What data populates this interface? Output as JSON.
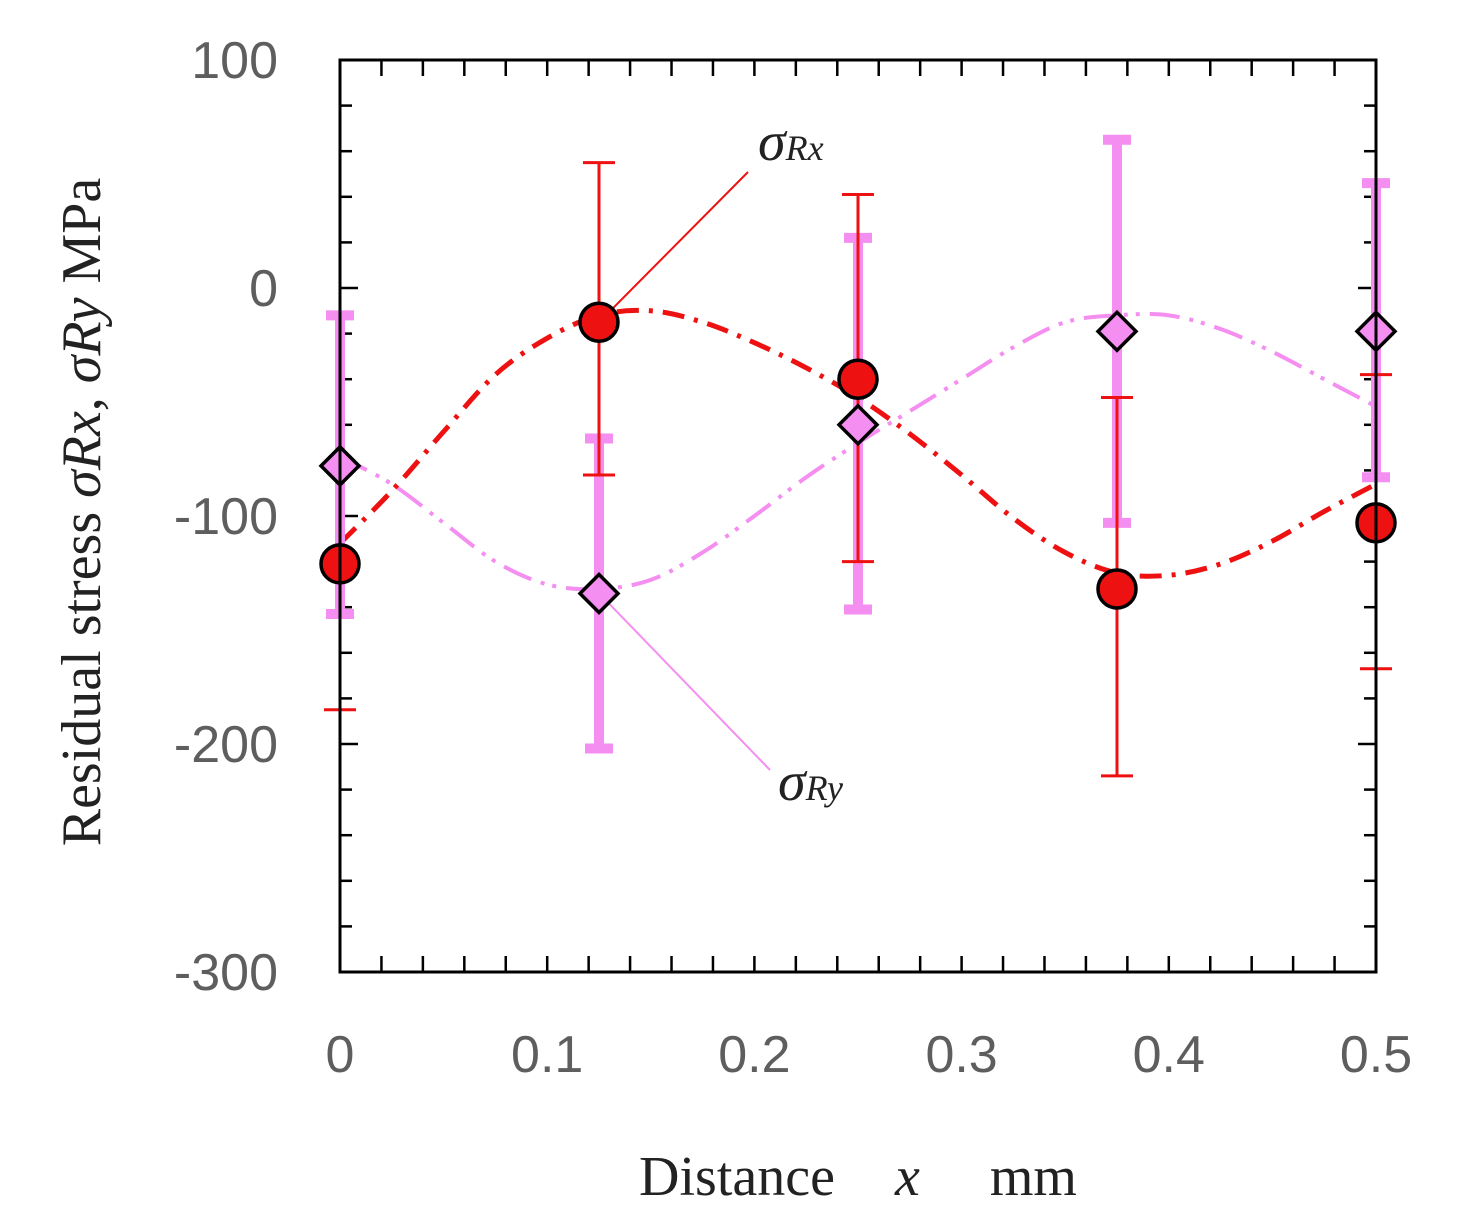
{
  "chart_data": {
    "type": "scatter",
    "title": "",
    "xlabel": "Distance",
    "xlabel_var": "x",
    "xlabel_unit": "mm",
    "ylabel": "Residual stress",
    "ylabel_symbol_x": "σRx",
    "ylabel_symbol_y": "σRy",
    "ylabel_unit": "MPa",
    "xlim": [
      0,
      0.5
    ],
    "ylim": [
      -300,
      100
    ],
    "x_ticks": [
      0,
      0.1,
      0.2,
      0.3,
      0.4,
      0.5
    ],
    "x_tick_labels": [
      "0",
      "0.1",
      "0.2",
      "0.3",
      "0.4",
      "0.5"
    ],
    "y_ticks": [
      100,
      0,
      -100,
      -200,
      -300
    ],
    "y_tick_labels": [
      "100",
      "0",
      "-100",
      "-200",
      "-300"
    ],
    "grid": false,
    "series": [
      {
        "name": "σRx",
        "label_main": "σ",
        "label_sub": "Rx",
        "marker": "circle",
        "color": "#ee1111",
        "x": [
          0,
          0.125,
          0.25,
          0.375,
          0.5
        ],
        "values": [
          -121,
          -15,
          -40,
          -132,
          -103
        ],
        "err_high": [
          -120,
          55,
          41,
          -48,
          -38
        ],
        "err_low": [
          -185,
          -82,
          -120,
          -214,
          -167
        ],
        "fit_line": "dash-dot",
        "fit_x": [
          0,
          0.025,
          0.05,
          0.075,
          0.1,
          0.125,
          0.15,
          0.175,
          0.2,
          0.225,
          0.25,
          0.275,
          0.3,
          0.325,
          0.35,
          0.375,
          0.4,
          0.425,
          0.45,
          0.475,
          0.5
        ],
        "fit_y": [
          -112,
          -89,
          -63,
          -38,
          -22,
          -12,
          -10,
          -15,
          -24,
          -35,
          -48,
          -64,
          -82,
          -101,
          -116,
          -125,
          -126,
          -121,
          -111,
          -98,
          -86
        ]
      },
      {
        "name": "σRy",
        "label_main": "σ",
        "label_sub": "Ry",
        "marker": "diamond",
        "color": "#f48ef0",
        "x": [
          0,
          0.125,
          0.25,
          0.375,
          0.5
        ],
        "values": [
          -78,
          -134,
          -60,
          -19,
          -19
        ],
        "err_high": [
          -12,
          -66,
          22,
          65,
          46
        ],
        "err_low": [
          -143,
          -202,
          -141,
          -103,
          -83
        ],
        "fit_line": "dash-dot-dot",
        "fit_x": [
          0,
          0.025,
          0.05,
          0.075,
          0.1,
          0.125,
          0.15,
          0.175,
          0.2,
          0.225,
          0.25,
          0.275,
          0.3,
          0.325,
          0.35,
          0.375,
          0.4,
          0.425,
          0.45,
          0.475,
          0.5
        ],
        "fit_y": [
          -74,
          -86,
          -103,
          -120,
          -130,
          -132,
          -128,
          -116,
          -100,
          -83,
          -68,
          -54,
          -40,
          -26,
          -15,
          -12,
          -12,
          -18,
          -28,
          -40,
          -52
        ]
      }
    ]
  }
}
